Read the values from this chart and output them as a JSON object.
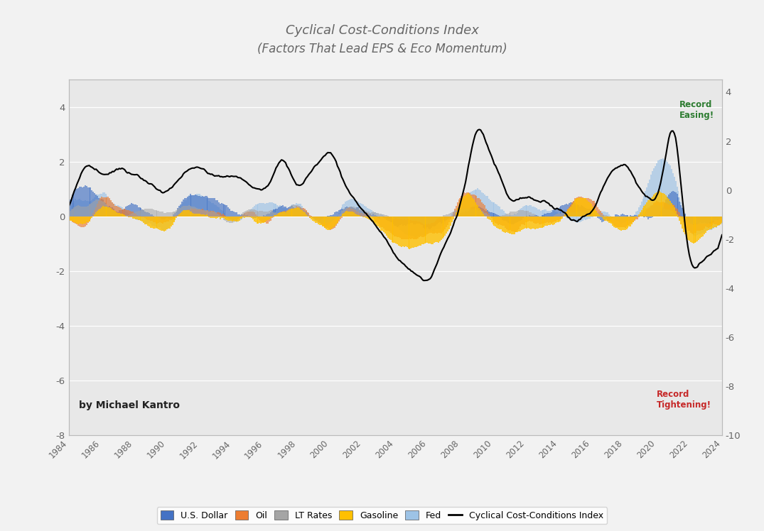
{
  "title_line1": "Cyclical Cost-Conditions Index",
  "title_line2": "(Factors That Lead EPS & Eco Momentum)",
  "author": "by Michael Kantro",
  "bg_color": "#f2f2f2",
  "plot_bg_color": "#e8e8e8",
  "ylim_left": [
    -8,
    5
  ],
  "ylim_right": [
    -10,
    4.5
  ],
  "annotation_easing": "Record\nEasing!",
  "annotation_tightening": "Record\nTightening!",
  "colors": {
    "dollar": "#4472C4",
    "oil": "#ED7D31",
    "lt_rates": "#A5A5A5",
    "gasoline": "#FFC000",
    "fed": "#9DC3E6",
    "index_line": "#000000"
  },
  "legend_labels": [
    "U.S. Dollar",
    "Oil",
    "LT Rates",
    "Gasoline",
    "Fed",
    "Cyclical Cost-Conditions Index"
  ]
}
